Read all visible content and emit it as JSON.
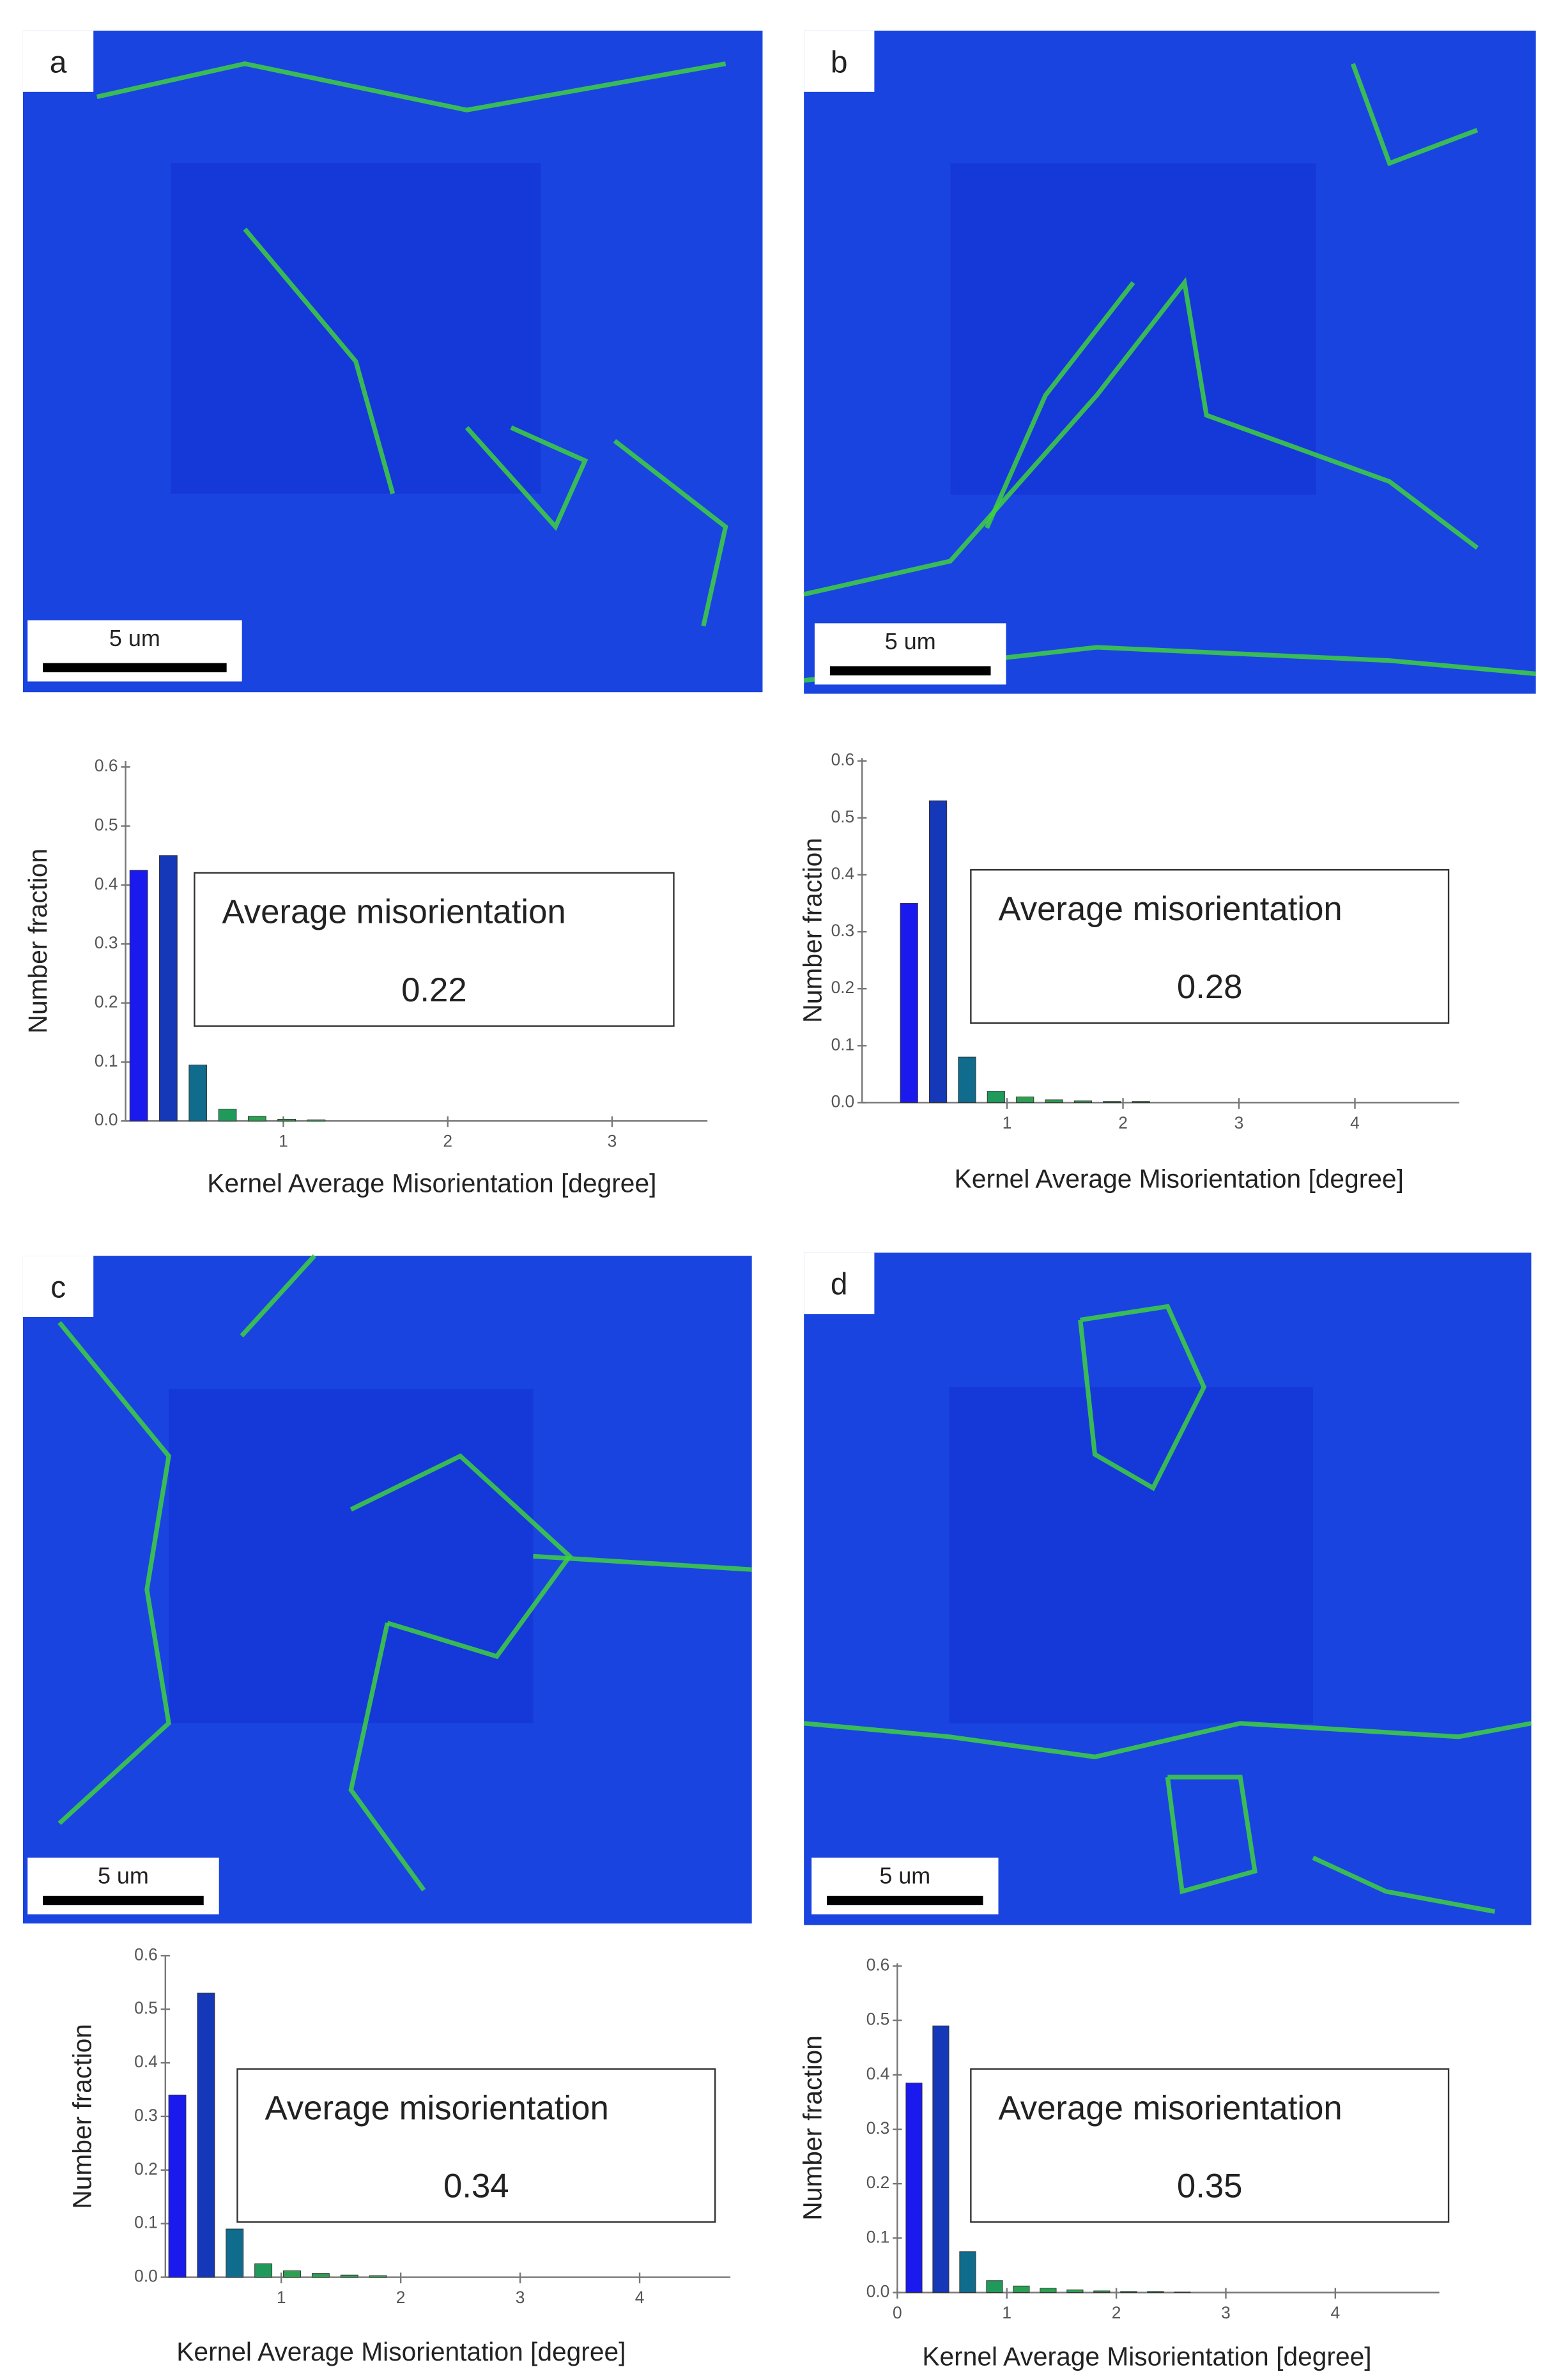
{
  "chart_data": [
    {
      "type": "histogram",
      "panel": "a",
      "scale_bar": "5 um",
      "ylabel": "Number fraction",
      "xlabel": "Kernel Average Misorientation [degree]",
      "annotation": {
        "title": "Average misorientation",
        "value": 0.22
      },
      "bins": [
        0.03,
        0.21,
        0.39,
        0.57,
        0.75,
        0.93,
        1.11,
        1.29
      ],
      "values": [
        0.425,
        0.45,
        0.095,
        0.02,
        0.008,
        0.003,
        0.002
      ],
      "colors": [
        "#1a1aee",
        "#1438b8",
        "#106c8c",
        "#1f9a5a",
        "#2aa050",
        "#2aa050",
        "#2aa050"
      ],
      "xlim": [
        0.04,
        3.58
      ],
      "xticks": [
        1,
        2,
        3
      ],
      "ylim": [
        0,
        0.61
      ],
      "yticks": [
        {
          "value": 0,
          "label": "0.0"
        },
        0.1,
        0.2,
        0.3,
        0.4,
        0.5,
        0.6
      ]
    },
    {
      "type": "histogram",
      "panel": "b",
      "scale_bar": "5 um",
      "ylabel": "Number fraction",
      "xlabel": "Kernel Average Misorientation [degree]",
      "annotation": {
        "title": "Average misorientation",
        "value": 0.28
      },
      "bins": [
        0.03,
        0.28,
        0.53,
        0.78,
        1.03,
        1.28,
        1.53,
        1.78,
        2.03,
        2.28
      ],
      "values": [
        0.35,
        0.53,
        0.08,
        0.02,
        0.01,
        0.005,
        0.003,
        0.002,
        0.002
      ],
      "colors": [
        "#1a1aee",
        "#1438b8",
        "#106c8c",
        "#1f9a5a",
        "#2aa050",
        "#2aa050",
        "#2aa050",
        "#2aa050",
        "#2aa050"
      ],
      "xlim": [
        -0.25,
        4.9
      ],
      "xticks": [
        1,
        2,
        3,
        4
      ],
      "ylim": [
        0,
        0.605
      ],
      "yticks": [
        {
          "value": 0,
          "label": "0.0"
        },
        0.1,
        0.2,
        0.3,
        0.4,
        0.5,
        0.6
      ]
    },
    {
      "type": "histogram",
      "panel": "c",
      "scale_bar": "5 um",
      "ylabel": "Number fraction",
      "xlabel": "Kernel Average Misorientation [degree]",
      "annotation": {
        "title": "Average misorientation",
        "value": 0.34
      },
      "bins": [
        0.01,
        0.25,
        0.49,
        0.73,
        0.97,
        1.21,
        1.45,
        1.69,
        1.93
      ],
      "values": [
        0.34,
        0.53,
        0.09,
        0.025,
        0.012,
        0.007,
        0.004,
        0.003
      ],
      "colors": [
        "#1a1aee",
        "#1438b8",
        "#106c8c",
        "#1f9a5a",
        "#2aa050",
        "#2aa050",
        "#2aa050",
        "#2aa050"
      ],
      "xlim": [
        0.03,
        4.76
      ],
      "xticks": [
        1,
        2,
        3,
        4
      ],
      "ylim": [
        0,
        0.6
      ],
      "yticks": [
        {
          "value": 0,
          "label": "0.0"
        },
        0.1,
        0.2,
        0.3,
        0.4,
        0.5,
        0.6
      ]
    },
    {
      "type": "histogram",
      "panel": "d",
      "scale_bar": "5 um",
      "ylabel": "Number fraction",
      "xlabel": "Kernel Average Misorientation [degree]",
      "annotation": {
        "title": "Average misorientation",
        "value": 0.35
      },
      "bins": [
        0.03,
        0.275,
        0.52,
        0.765,
        1.01,
        1.255,
        1.5,
        1.745,
        1.99,
        2.235,
        2.48,
        2.725
      ],
      "values": [
        0.385,
        0.49,
        0.075,
        0.022,
        0.012,
        0.008,
        0.005,
        0.003,
        0.002,
        0.002,
        0.001
      ],
      "colors": [
        "#1a1aee",
        "#1438b8",
        "#106c8c",
        "#1f9a5a",
        "#2aa050",
        "#2aa050",
        "#2aa050",
        "#2aa050",
        "#2aa050",
        "#2aa050",
        "#2aa050"
      ],
      "xlim": [
        0,
        4.95
      ],
      "xticks": [
        0,
        1,
        2,
        3,
        4
      ],
      "ylim": [
        0,
        0.605
      ],
      "yticks": [
        {
          "value": 0,
          "label": "0.0"
        },
        0.1,
        0.2,
        0.3,
        0.4,
        0.5,
        0.6
      ]
    }
  ]
}
